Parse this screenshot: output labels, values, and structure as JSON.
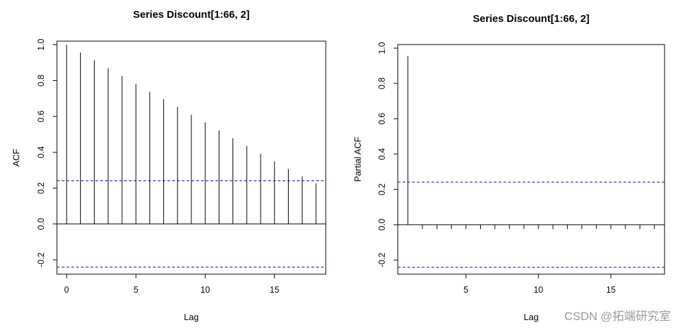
{
  "watermark": "CSDN @拓端研究室",
  "colors": {
    "bars": "#000000",
    "confidence_band": "#0000cc",
    "zero_line": "#000000",
    "frame": "#000000"
  },
  "chart_data": [
    {
      "type": "bar",
      "title": "Series  Discount[1:66, 2]",
      "xlabel": "Lag",
      "ylabel": "ACF",
      "xlim": [
        -0.7,
        18.7
      ],
      "ylim": [
        -0.28,
        1.02
      ],
      "xticks": [
        0,
        5,
        10,
        15
      ],
      "yticks": [
        -0.2,
        0.0,
        0.2,
        0.4,
        0.6,
        0.8,
        1.0
      ],
      "ytick_labels": [
        "-0.2",
        "0.0",
        "0.2",
        "0.4",
        "0.6",
        "0.8",
        "1.0"
      ],
      "confidence_bound": 0.241,
      "grid": false,
      "x": [
        0,
        1,
        2,
        3,
        4,
        5,
        6,
        7,
        8,
        9,
        10,
        11,
        12,
        13,
        14,
        15,
        16,
        17,
        18
      ],
      "values": [
        1.0,
        0.957,
        0.913,
        0.869,
        0.826,
        0.782,
        0.738,
        0.696,
        0.653,
        0.61,
        0.567,
        0.522,
        0.478,
        0.435,
        0.391,
        0.349,
        0.307,
        0.266,
        0.227
      ]
    },
    {
      "type": "bar",
      "title": "Series  Discount[1:66, 2]",
      "xlabel": "Lag",
      "ylabel": "Partial ACF",
      "xlim": [
        0.3,
        18.7
      ],
      "ylim": [
        -0.28,
        1.02
      ],
      "xticks": [
        5,
        10,
        15
      ],
      "yticks": [
        -0.2,
        0.0,
        0.2,
        0.4,
        0.6,
        0.8,
        1.0
      ],
      "ytick_labels": [
        "-0.2",
        "0.0",
        "0.2",
        "0.4",
        "0.6",
        "0.8",
        "1.0"
      ],
      "confidence_bound": 0.241,
      "grid": false,
      "x": [
        1,
        2,
        3,
        4,
        5,
        6,
        7,
        8,
        9,
        10,
        11,
        12,
        13,
        14,
        15,
        16,
        17,
        18
      ],
      "values": [
        0.955,
        -0.025,
        -0.025,
        -0.025,
        -0.025,
        -0.025,
        -0.025,
        -0.025,
        -0.025,
        -0.025,
        -0.025,
        -0.025,
        -0.025,
        -0.025,
        -0.025,
        -0.025,
        -0.025,
        -0.025
      ]
    }
  ]
}
